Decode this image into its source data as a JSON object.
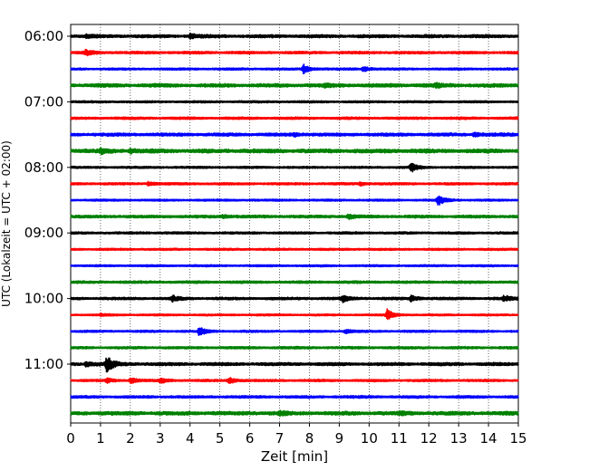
{
  "chart_data": {
    "type": "line",
    "xlabel": "Zeit  [min]",
    "ylabel": "UTC (Lokalzeit = UTC + 02:00)",
    "xlim": [
      0,
      15
    ],
    "x_ticks": [
      0,
      1,
      2,
      3,
      4,
      5,
      6,
      7,
      8,
      9,
      10,
      11,
      12,
      13,
      14,
      15
    ],
    "x_tick_labels": [
      "0",
      "1",
      "2",
      "3",
      "4",
      "5",
      "6",
      "7",
      "8",
      "9",
      "10",
      "11",
      "12",
      "13",
      "14",
      "15"
    ],
    "y_tick_labels": [
      "06:00",
      "07:00",
      "08:00",
      "09:00",
      "10:00",
      "11:00"
    ],
    "grid": "vertical dotted",
    "trace_minutes": 15,
    "colors": [
      "#000000",
      "#ff0000",
      "#0000ff",
      "#008000"
    ],
    "traces": [
      {
        "start": "06:00",
        "color": "#000000",
        "base_amp": 0.22,
        "events": [
          [
            4.0,
            0.35
          ],
          [
            0.5,
            0.2
          ]
        ]
      },
      {
        "start": "06:15",
        "color": "#ff0000",
        "base_amp": 0.18,
        "events": [
          [
            0.5,
            0.45
          ]
        ]
      },
      {
        "start": "06:30",
        "color": "#0000ff",
        "base_amp": 0.15,
        "events": [
          [
            7.8,
            0.75
          ],
          [
            9.8,
            0.45
          ]
        ]
      },
      {
        "start": "06:45",
        "color": "#008000",
        "base_amp": 0.25,
        "events": [
          [
            8.5,
            0.3
          ],
          [
            12.2,
            0.25
          ]
        ]
      },
      {
        "start": "07:00",
        "color": "#000000",
        "base_amp": 0.15,
        "events": []
      },
      {
        "start": "07:15",
        "color": "#ff0000",
        "base_amp": 0.17,
        "events": []
      },
      {
        "start": "07:30",
        "color": "#0000ff",
        "base_amp": 0.22,
        "events": [
          [
            7.5,
            0.25
          ],
          [
            13.5,
            0.3
          ]
        ]
      },
      {
        "start": "07:45",
        "color": "#008000",
        "base_amp": 0.28,
        "events": [
          [
            1.0,
            0.35
          ],
          [
            2.0,
            0.3
          ]
        ]
      },
      {
        "start": "08:00",
        "color": "#000000",
        "base_amp": 0.15,
        "events": [
          [
            11.4,
            0.8
          ]
        ]
      },
      {
        "start": "08:15",
        "color": "#ff0000",
        "base_amp": 0.16,
        "events": [
          [
            2.6,
            0.3
          ],
          [
            9.7,
            0.25
          ]
        ]
      },
      {
        "start": "08:30",
        "color": "#0000ff",
        "base_amp": 0.14,
        "events": [
          [
            12.3,
            0.9
          ]
        ]
      },
      {
        "start": "08:45",
        "color": "#008000",
        "base_amp": 0.2,
        "events": [
          [
            5.1,
            0.25
          ],
          [
            9.3,
            0.35
          ]
        ]
      },
      {
        "start": "09:00",
        "color": "#000000",
        "base_amp": 0.16,
        "events": []
      },
      {
        "start": "09:15",
        "color": "#ff0000",
        "base_amp": 0.15,
        "events": []
      },
      {
        "start": "09:30",
        "color": "#0000ff",
        "base_amp": 0.14,
        "events": []
      },
      {
        "start": "09:45",
        "color": "#008000",
        "base_amp": 0.18,
        "events": []
      },
      {
        "start": "10:00",
        "color": "#000000",
        "base_amp": 0.18,
        "events": [
          [
            3.4,
            0.45
          ],
          [
            9.1,
            0.55
          ],
          [
            11.4,
            0.5
          ],
          [
            14.5,
            0.5
          ]
        ]
      },
      {
        "start": "10:15",
        "color": "#ff0000",
        "base_amp": 0.13,
        "events": [
          [
            10.6,
            1.0
          ],
          [
            1.0,
            0.2
          ]
        ]
      },
      {
        "start": "10:30",
        "color": "#0000ff",
        "base_amp": 0.15,
        "events": [
          [
            4.3,
            0.75
          ],
          [
            9.2,
            0.3
          ]
        ]
      },
      {
        "start": "10:45",
        "color": "#008000",
        "base_amp": 0.17,
        "events": []
      },
      {
        "start": "11:00",
        "color": "#000000",
        "base_amp": 0.22,
        "events": [
          [
            1.2,
            1.4
          ],
          [
            0.5,
            0.4
          ]
        ]
      },
      {
        "start": "11:15",
        "color": "#ff0000",
        "base_amp": 0.16,
        "events": [
          [
            2.0,
            0.45
          ],
          [
            3.0,
            0.45
          ],
          [
            5.3,
            0.55
          ],
          [
            1.2,
            0.35
          ]
        ]
      },
      {
        "start": "11:30",
        "color": "#0000ff",
        "base_amp": 0.18,
        "events": []
      },
      {
        "start": "11:45",
        "color": "#008000",
        "base_amp": 0.26,
        "events": [
          [
            7.0,
            0.25
          ],
          [
            11.0,
            0.25
          ]
        ]
      }
    ]
  }
}
